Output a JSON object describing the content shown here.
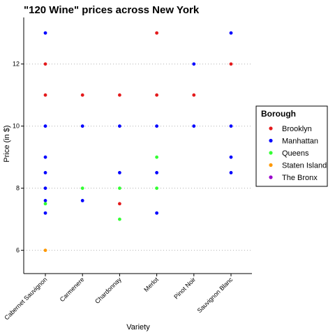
{
  "chart_data": {
    "type": "scatter",
    "title": "\"120 Wine\" prices across New York",
    "xlabel": "Variety",
    "ylabel": "Price (in $)",
    "categories": [
      "Cabernet Sauvignon",
      "Carmenere",
      "Chardonnay",
      "Merlot",
      "Pinot Noir",
      "Sauvignon Blanc"
    ],
    "ylim": [
      5.25,
      13.5
    ],
    "yticks": [
      6,
      8,
      10,
      12
    ],
    "grid": "horizontal-dotted",
    "legend": {
      "title": "Borough",
      "placement": "right",
      "entries": [
        "Brooklyn",
        "Manhattan",
        "Queens",
        "Staten Island",
        "The Bronx"
      ]
    },
    "colors": {
      "Brooklyn": "#e41a1c",
      "Manhattan": "#0000ff",
      "Queens": "#33ff33",
      "Staten Island": "#ff9900",
      "The Bronx": "#9900cc"
    },
    "series": [
      {
        "name": "Brooklyn",
        "points": [
          {
            "x": "Cabernet Sauvignon",
            "y": 12
          },
          {
            "x": "Cabernet Sauvignon",
            "y": 11
          },
          {
            "x": "Carmenere",
            "y": 11
          },
          {
            "x": "Chardonnay",
            "y": 11
          },
          {
            "x": "Chardonnay",
            "y": 7.5
          },
          {
            "x": "Merlot",
            "y": 13
          },
          {
            "x": "Merlot",
            "y": 11
          },
          {
            "x": "Pinot Noir",
            "y": 11
          },
          {
            "x": "Sauvignon Blanc",
            "y": 12
          }
        ]
      },
      {
        "name": "Manhattan",
        "points": [
          {
            "x": "Cabernet Sauvignon",
            "y": 13
          },
          {
            "x": "Cabernet Sauvignon",
            "y": 10
          },
          {
            "x": "Cabernet Sauvignon",
            "y": 9
          },
          {
            "x": "Cabernet Sauvignon",
            "y": 8.5
          },
          {
            "x": "Cabernet Sauvignon",
            "y": 8
          },
          {
            "x": "Cabernet Sauvignon",
            "y": 7.6
          },
          {
            "x": "Cabernet Sauvignon",
            "y": 7.2
          },
          {
            "x": "Carmenere",
            "y": 10
          },
          {
            "x": "Carmenere",
            "y": 7.6
          },
          {
            "x": "Chardonnay",
            "y": 10
          },
          {
            "x": "Chardonnay",
            "y": 8.5
          },
          {
            "x": "Merlot",
            "y": 10
          },
          {
            "x": "Merlot",
            "y": 8.5
          },
          {
            "x": "Merlot",
            "y": 7.2
          },
          {
            "x": "Pinot Noir",
            "y": 12
          },
          {
            "x": "Pinot Noir",
            "y": 10
          },
          {
            "x": "Sauvignon Blanc",
            "y": 13
          },
          {
            "x": "Sauvignon Blanc",
            "y": 10
          },
          {
            "x": "Sauvignon Blanc",
            "y": 9
          },
          {
            "x": "Sauvignon Blanc",
            "y": 8.5
          }
        ]
      },
      {
        "name": "Queens",
        "points": [
          {
            "x": "Cabernet Sauvignon",
            "y": 7.5
          },
          {
            "x": "Carmenere",
            "y": 8
          },
          {
            "x": "Chardonnay",
            "y": 8
          },
          {
            "x": "Chardonnay",
            "y": 7
          },
          {
            "x": "Merlot",
            "y": 9
          },
          {
            "x": "Merlot",
            "y": 8
          }
        ]
      },
      {
        "name": "Staten Island",
        "points": [
          {
            "x": "Cabernet Sauvignon",
            "y": 6
          }
        ]
      },
      {
        "name": "The Bronx",
        "points": []
      }
    ]
  }
}
